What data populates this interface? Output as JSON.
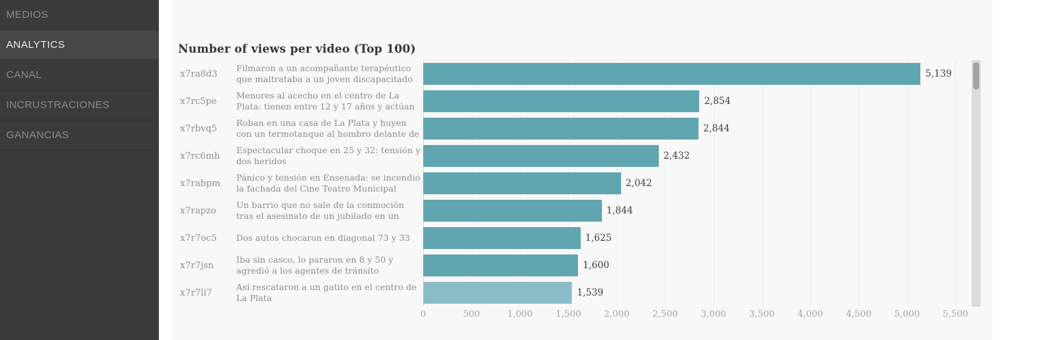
{
  "sidebar": {
    "items": [
      {
        "label": "MEDIOS",
        "active": false
      },
      {
        "label": "ANALYTICS",
        "active": true
      },
      {
        "label": "CANAL",
        "active": false
      },
      {
        "label": "INCRUSTRACIONES",
        "active": false
      },
      {
        "label": "GANANCIAS",
        "active": false
      }
    ]
  },
  "chart_data": {
    "type": "bar",
    "orientation": "horizontal",
    "title": "Number of views per video (Top 100)",
    "xlabel": "",
    "ylabel": "",
    "xlim": [
      0,
      5500
    ],
    "grid": true,
    "bar_color": "#60a6b1",
    "highlight_bar_color": "#8abdc8",
    "x_ticks": [
      {
        "value": 0,
        "label": "0"
      },
      {
        "value": 500,
        "label": "500"
      },
      {
        "value": 1000,
        "label": "1,000"
      },
      {
        "value": 1500,
        "label": "1,500"
      },
      {
        "value": 2000,
        "label": "2,000"
      },
      {
        "value": 2500,
        "label": "2,500"
      },
      {
        "value": 3000,
        "label": "3,000"
      },
      {
        "value": 3500,
        "label": "3,500"
      },
      {
        "value": 4000,
        "label": "4,000"
      },
      {
        "value": 4500,
        "label": "4,500"
      },
      {
        "value": 5000,
        "label": "5,000"
      },
      {
        "value": 5500,
        "label": "5,500"
      }
    ],
    "rows": [
      {
        "id": "x7ra8d3",
        "title": "Filmaron a un acompañante terapéutico que maltrataba a un joven discapacitado",
        "value": 5139,
        "value_label": "5,139"
      },
      {
        "id": "x7rc5pe",
        "title": "Menores al acecho en el centro de La Plata: tienen entre 12 y 17 años y actúan armados",
        "value": 2854,
        "value_label": "2,854"
      },
      {
        "id": "x7rbvq5",
        "title": "Roban en una casa de La Plata y huyen con un termotanque al hombro delante de los policías",
        "value": 2844,
        "value_label": "2,844"
      },
      {
        "id": "x7rc6mh",
        "title": "Espectacular choque en 25 y 32: tensión y dos heridos",
        "value": 2432,
        "value_label": "2,432"
      },
      {
        "id": "x7rabpm",
        "title": "Pánico y tensión en Ensenada: se incendió la fachada del Cine Teatro Municipal",
        "value": 2042,
        "value_label": "2,042"
      },
      {
        "id": "x7rapzo",
        "title": "Un barrio que no sale de la conmoción tras el asesinato de un jubilado en un asalto",
        "value": 1844,
        "value_label": "1,844"
      },
      {
        "id": "x7r7oc5",
        "title": "Dos autos chocaron en diagonal 73 y 33",
        "value": 1625,
        "value_label": "1,625"
      },
      {
        "id": "x7r7jsn",
        "title": "Iba sin casco, lo pararon en 8 y 50 y agredió a los agentes de tránsito",
        "value": 1600,
        "value_label": "1,600"
      },
      {
        "id": "x7r7li7",
        "title": "Así rescataron a un gatito en el centro de La Plata",
        "value": 1539,
        "value_label": "1,539",
        "color": "#8abdc8"
      }
    ]
  }
}
